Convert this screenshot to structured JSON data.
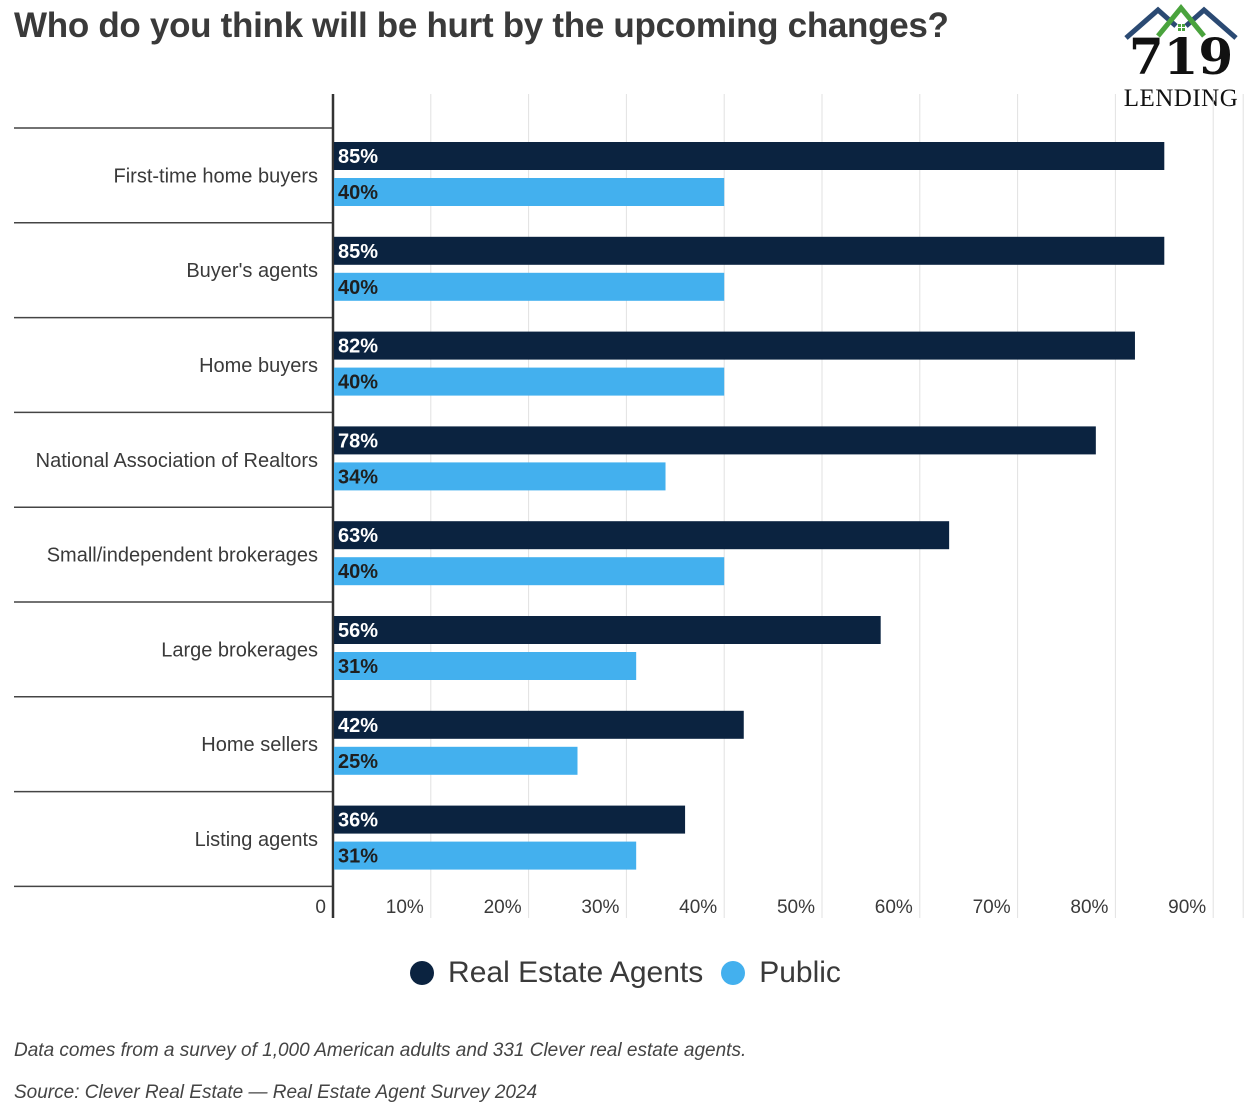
{
  "title": "Who do you think will be hurt by the upcoming changes?",
  "logo": {
    "number": "719",
    "word": "LENDING",
    "roof_colors": [
      "#2b4a73",
      "#4aa33d"
    ]
  },
  "footnote": "Data comes from a survey of 1,000 American adults and 331 Clever real estate agents.",
  "source": "Source: Clever Real Estate — Real Estate Agent Survey 2024",
  "chart_data": {
    "type": "bar",
    "orientation": "horizontal",
    "title": "Who do you think will be hurt by the upcoming changes?",
    "categories": [
      "First-time home buyers",
      "Buyer's agents",
      "Home buyers",
      "National Association of Realtors",
      "Small/independent brokerages",
      "Large brokerages",
      "Home sellers",
      "Listing agents"
    ],
    "series": [
      {
        "name": "Real Estate Agents",
        "color": "#0b2340",
        "values": [
          85,
          85,
          82,
          78,
          63,
          56,
          42,
          36
        ]
      },
      {
        "name": "Public",
        "color": "#43b0ee",
        "values": [
          40,
          40,
          40,
          34,
          40,
          31,
          25,
          31
        ]
      }
    ],
    "xlim": [
      0,
      90
    ],
    "xticks": [
      "0",
      "10%",
      "20%",
      "30%",
      "40%",
      "50%",
      "60%",
      "70%",
      "80%",
      "90%"
    ],
    "value_suffix": "%",
    "grid": true,
    "legend": "bottom"
  }
}
